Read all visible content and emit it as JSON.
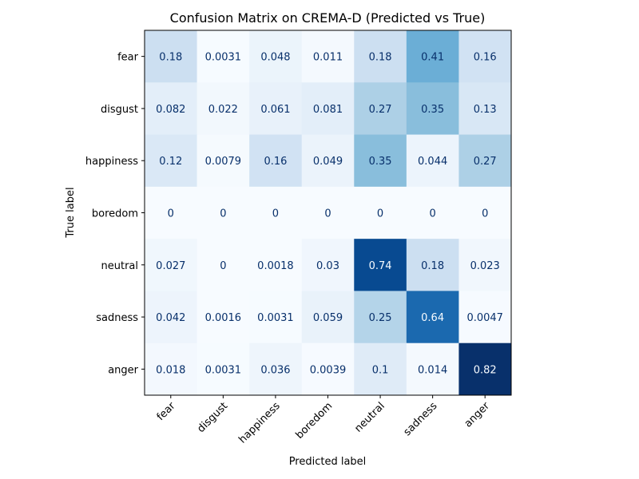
{
  "chart_data": {
    "type": "heatmap",
    "title": "Confusion Matrix on CREMA-D (Predicted vs True)",
    "xlabel": "Predicted label",
    "ylabel": "True label",
    "x_categories": [
      "fear",
      "disgust",
      "happiness",
      "boredom",
      "neutral",
      "sadness",
      "anger"
    ],
    "y_categories": [
      "fear",
      "disgust",
      "happiness",
      "boredom",
      "neutral",
      "sadness",
      "anger"
    ],
    "values": [
      [
        0.18,
        0.0031,
        0.048,
        0.011,
        0.18,
        0.41,
        0.16
      ],
      [
        0.082,
        0.022,
        0.061,
        0.081,
        0.27,
        0.35,
        0.13
      ],
      [
        0.12,
        0.0079,
        0.16,
        0.049,
        0.35,
        0.044,
        0.27
      ],
      [
        0,
        0,
        0,
        0,
        0,
        0,
        0
      ],
      [
        0.027,
        0,
        0.0018,
        0.03,
        0.74,
        0.18,
        0.023
      ],
      [
        0.042,
        0.0016,
        0.0031,
        0.059,
        0.25,
        0.64,
        0.0047
      ],
      [
        0.018,
        0.0031,
        0.036,
        0.0039,
        0.1,
        0.014,
        0.82
      ]
    ],
    "labels": [
      [
        "0.18",
        "0.0031",
        "0.048",
        "0.011",
        "0.18",
        "0.41",
        "0.16"
      ],
      [
        "0.082",
        "0.022",
        "0.061",
        "0.081",
        "0.27",
        "0.35",
        "0.13"
      ],
      [
        "0.12",
        "0.0079",
        "0.16",
        "0.049",
        "0.35",
        "0.044",
        "0.27"
      ],
      [
        "0",
        "0",
        "0",
        "0",
        "0",
        "0",
        "0"
      ],
      [
        "0.027",
        "0",
        "0.0018",
        "0.03",
        "0.74",
        "0.18",
        "0.023"
      ],
      [
        "0.042",
        "0.0016",
        "0.0031",
        "0.059",
        "0.25",
        "0.64",
        "0.0047"
      ],
      [
        "0.018",
        "0.0031",
        "0.036",
        "0.0039",
        "0.1",
        "0.014",
        "0.82"
      ]
    ],
    "colormap": "Blues",
    "value_range": [
      0,
      0.82
    ],
    "colors": {
      "cmap_low": "#f7fbff",
      "cmap_high": "#08306b",
      "text_dark": "#08306b",
      "text_light": "#f7fbff"
    }
  }
}
